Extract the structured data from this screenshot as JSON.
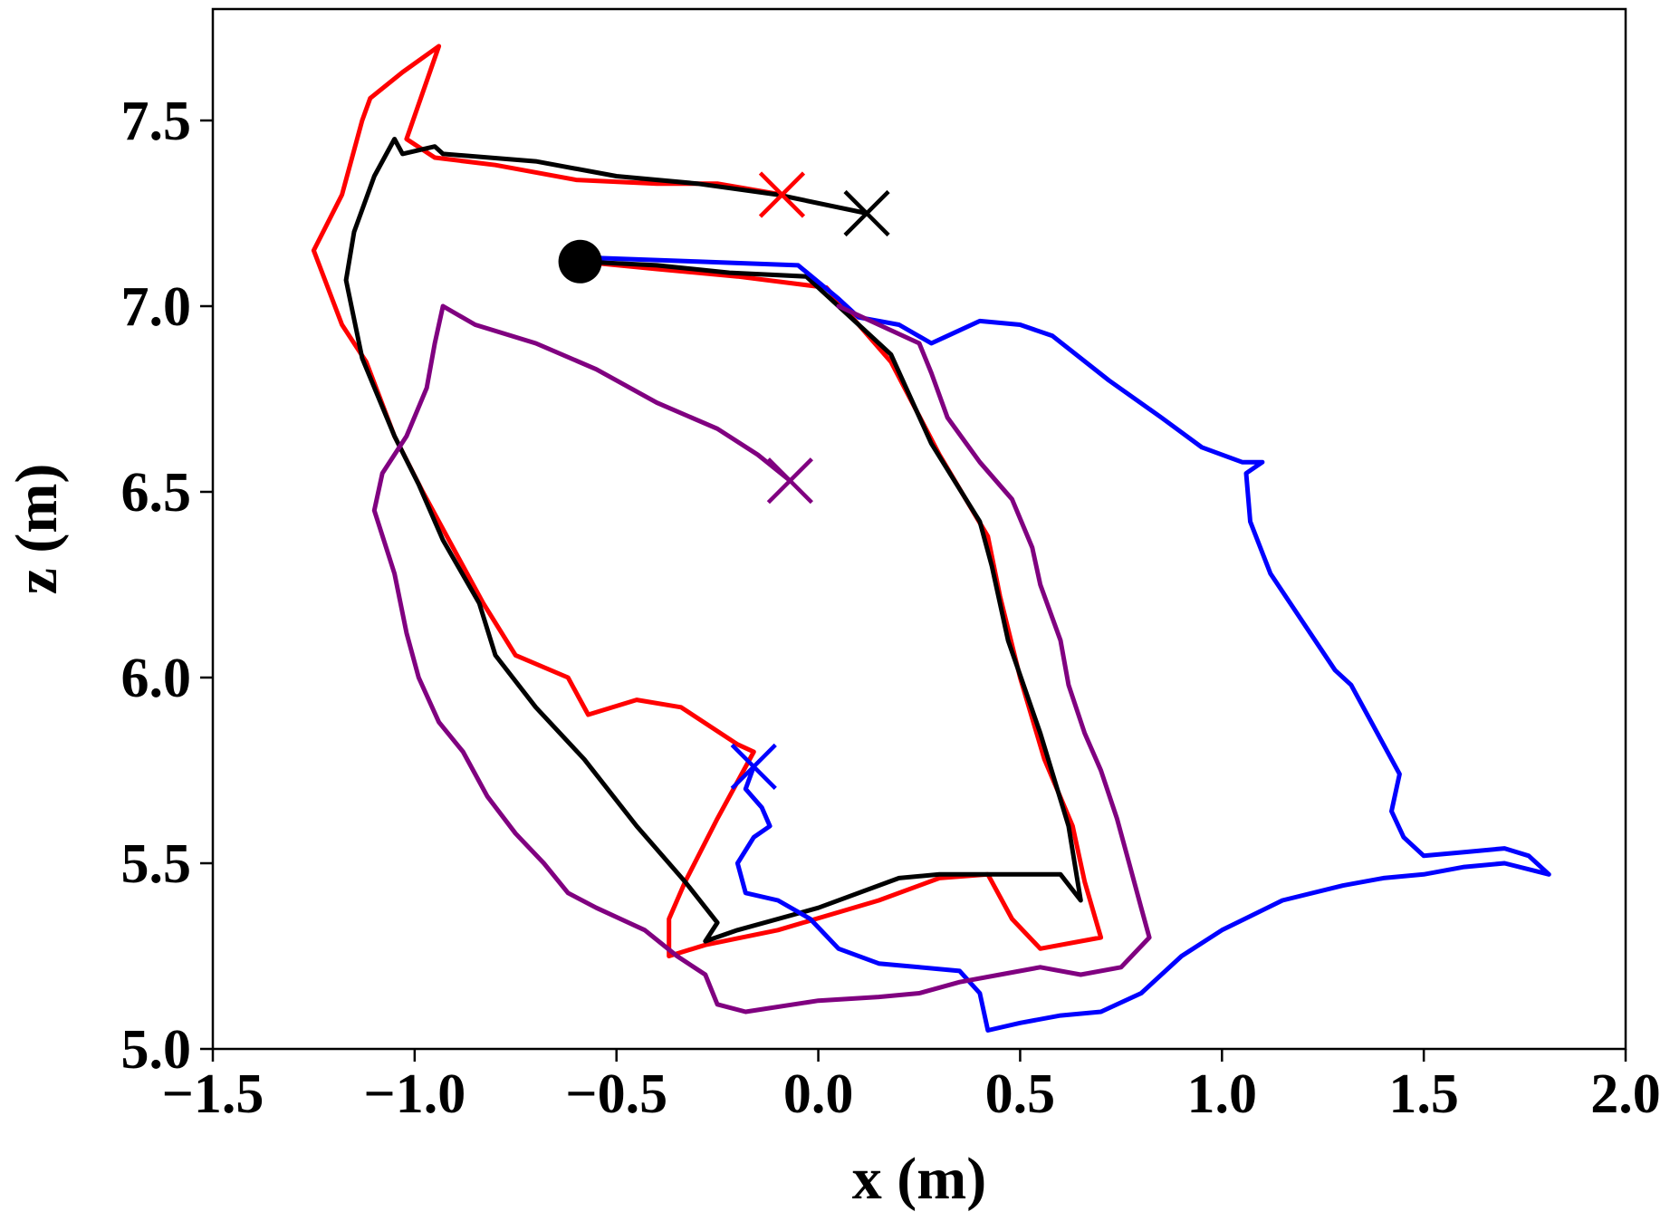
{
  "chart_data": {
    "type": "line",
    "title": "",
    "xlabel": "x (m)",
    "ylabel": "z (m)",
    "xlim": [
      -1.5,
      2.0
    ],
    "ylim": [
      5.0,
      7.8
    ],
    "x_ticks": [
      -1.5,
      -1.0,
      -0.5,
      0.0,
      0.5,
      1.0,
      1.5,
      2.0
    ],
    "x_tick_labels": [
      "−1.5",
      "−1.0",
      "−0.5",
      "0.0",
      "0.5",
      "1.0",
      "1.5",
      "2.0"
    ],
    "y_ticks": [
      5.0,
      5.5,
      6.0,
      6.5,
      7.0,
      7.5
    ],
    "y_tick_labels": [
      "5.0",
      "5.5",
      "6.0",
      "6.5",
      "7.0",
      "7.5"
    ],
    "grid": false,
    "legend": "none",
    "start_point": {
      "x": -0.59,
      "y": 7.12,
      "color": "#000000"
    },
    "series": [
      {
        "color": "#ff0000",
        "end": {
          "x": -0.09,
          "y": 7.3
        },
        "points": [
          [
            -0.59,
            7.12
          ],
          [
            -0.4,
            7.1
          ],
          [
            -0.2,
            7.08
          ],
          [
            0.02,
            7.05
          ],
          [
            0.18,
            6.85
          ],
          [
            0.3,
            6.6
          ],
          [
            0.42,
            6.38
          ],
          [
            0.45,
            6.22
          ],
          [
            0.5,
            6.0
          ],
          [
            0.56,
            5.78
          ],
          [
            0.63,
            5.6
          ],
          [
            0.66,
            5.45
          ],
          [
            0.7,
            5.3
          ],
          [
            0.55,
            5.27
          ],
          [
            0.48,
            5.35
          ],
          [
            0.42,
            5.47
          ],
          [
            0.3,
            5.46
          ],
          [
            0.15,
            5.4
          ],
          [
            -0.1,
            5.32
          ],
          [
            -0.28,
            5.28
          ],
          [
            -0.37,
            5.25
          ],
          [
            -0.37,
            5.35
          ],
          [
            -0.33,
            5.45
          ],
          [
            -0.25,
            5.62
          ],
          [
            -0.16,
            5.8
          ],
          [
            -0.2,
            5.82
          ],
          [
            -0.34,
            5.92
          ],
          [
            -0.45,
            5.94
          ],
          [
            -0.57,
            5.9
          ],
          [
            -0.62,
            6.0
          ],
          [
            -0.75,
            6.06
          ],
          [
            -0.83,
            6.2
          ],
          [
            -0.9,
            6.34
          ],
          [
            -0.98,
            6.5
          ],
          [
            -1.05,
            6.65
          ],
          [
            -1.12,
            6.85
          ],
          [
            -1.18,
            6.95
          ],
          [
            -1.25,
            7.15
          ],
          [
            -1.18,
            7.3
          ],
          [
            -1.13,
            7.5
          ],
          [
            -1.11,
            7.56
          ],
          [
            -1.03,
            7.63
          ],
          [
            -0.94,
            7.7
          ],
          [
            -1.02,
            7.45
          ],
          [
            -0.95,
            7.4
          ],
          [
            -0.8,
            7.38
          ],
          [
            -0.6,
            7.34
          ],
          [
            -0.4,
            7.33
          ],
          [
            -0.25,
            7.33
          ],
          [
            -0.09,
            7.3
          ]
        ]
      },
      {
        "color": "#000000",
        "end": {
          "x": 0.12,
          "y": 7.25
        },
        "points": [
          [
            -0.59,
            7.12
          ],
          [
            -0.4,
            7.11
          ],
          [
            -0.22,
            7.09
          ],
          [
            -0.03,
            7.08
          ],
          [
            0.05,
            7.0
          ],
          [
            0.18,
            6.87
          ],
          [
            0.28,
            6.63
          ],
          [
            0.4,
            6.42
          ],
          [
            0.43,
            6.3
          ],
          [
            0.47,
            6.1
          ],
          [
            0.55,
            5.85
          ],
          [
            0.62,
            5.6
          ],
          [
            0.65,
            5.4
          ],
          [
            0.6,
            5.47
          ],
          [
            0.3,
            5.47
          ],
          [
            0.2,
            5.46
          ],
          [
            0.0,
            5.38
          ],
          [
            -0.2,
            5.32
          ],
          [
            -0.28,
            5.29
          ],
          [
            -0.25,
            5.34
          ],
          [
            -0.33,
            5.45
          ],
          [
            -0.45,
            5.6
          ],
          [
            -0.58,
            5.78
          ],
          [
            -0.7,
            5.92
          ],
          [
            -0.8,
            6.06
          ],
          [
            -0.84,
            6.2
          ],
          [
            -0.93,
            6.37
          ],
          [
            -0.99,
            6.52
          ],
          [
            -1.05,
            6.65
          ],
          [
            -1.13,
            6.86
          ],
          [
            -1.17,
            7.07
          ],
          [
            -1.15,
            7.2
          ],
          [
            -1.1,
            7.35
          ],
          [
            -1.05,
            7.45
          ],
          [
            -1.03,
            7.41
          ],
          [
            -0.95,
            7.43
          ],
          [
            -0.93,
            7.41
          ],
          [
            -0.7,
            7.39
          ],
          [
            -0.5,
            7.35
          ],
          [
            -0.3,
            7.33
          ],
          [
            -0.1,
            7.3
          ],
          [
            0.12,
            7.25
          ]
        ]
      },
      {
        "color": "#0000ff",
        "end": {
          "x": -0.16,
          "y": 5.76
        },
        "points": [
          [
            -0.55,
            7.13
          ],
          [
            -0.3,
            7.12
          ],
          [
            -0.05,
            7.11
          ],
          [
            0.05,
            7.02
          ],
          [
            0.1,
            6.97
          ],
          [
            0.2,
            6.95
          ],
          [
            0.28,
            6.9
          ],
          [
            0.32,
            6.92
          ],
          [
            0.4,
            6.96
          ],
          [
            0.5,
            6.95
          ],
          [
            0.58,
            6.92
          ],
          [
            0.72,
            6.8
          ],
          [
            0.85,
            6.7
          ],
          [
            0.95,
            6.62
          ],
          [
            1.05,
            6.58
          ],
          [
            1.1,
            6.58
          ],
          [
            1.06,
            6.55
          ],
          [
            1.07,
            6.42
          ],
          [
            1.12,
            6.28
          ],
          [
            1.2,
            6.15
          ],
          [
            1.28,
            6.02
          ],
          [
            1.32,
            5.98
          ],
          [
            1.35,
            5.92
          ],
          [
            1.4,
            5.82
          ],
          [
            1.44,
            5.74
          ],
          [
            1.42,
            5.64
          ],
          [
            1.45,
            5.57
          ],
          [
            1.5,
            5.52
          ],
          [
            1.6,
            5.53
          ],
          [
            1.7,
            5.54
          ],
          [
            1.76,
            5.52
          ],
          [
            1.81,
            5.47
          ],
          [
            1.7,
            5.5
          ],
          [
            1.6,
            5.49
          ],
          [
            1.5,
            5.47
          ],
          [
            1.4,
            5.46
          ],
          [
            1.3,
            5.44
          ],
          [
            1.15,
            5.4
          ],
          [
            1.0,
            5.32
          ],
          [
            0.9,
            5.25
          ],
          [
            0.8,
            5.15
          ],
          [
            0.7,
            5.1
          ],
          [
            0.6,
            5.09
          ],
          [
            0.5,
            5.07
          ],
          [
            0.42,
            5.05
          ],
          [
            0.4,
            5.15
          ],
          [
            0.35,
            5.21
          ],
          [
            0.25,
            5.22
          ],
          [
            0.15,
            5.23
          ],
          [
            0.05,
            5.27
          ],
          [
            -0.02,
            5.35
          ],
          [
            -0.1,
            5.4
          ],
          [
            -0.18,
            5.42
          ],
          [
            -0.2,
            5.5
          ],
          [
            -0.16,
            5.57
          ],
          [
            -0.12,
            5.6
          ],
          [
            -0.14,
            5.65
          ],
          [
            -0.18,
            5.7
          ],
          [
            -0.16,
            5.76
          ]
        ]
      },
      {
        "color": "#800080",
        "end": {
          "x": -0.07,
          "y": 6.53
        },
        "points": [
          [
            0.05,
            7.0
          ],
          [
            0.15,
            6.95
          ],
          [
            0.25,
            6.9
          ],
          [
            0.28,
            6.82
          ],
          [
            0.32,
            6.7
          ],
          [
            0.4,
            6.58
          ],
          [
            0.48,
            6.48
          ],
          [
            0.53,
            6.35
          ],
          [
            0.55,
            6.25
          ],
          [
            0.6,
            6.1
          ],
          [
            0.62,
            5.98
          ],
          [
            0.66,
            5.85
          ],
          [
            0.7,
            5.75
          ],
          [
            0.74,
            5.62
          ],
          [
            0.77,
            5.5
          ],
          [
            0.8,
            5.38
          ],
          [
            0.82,
            5.3
          ],
          [
            0.75,
            5.22
          ],
          [
            0.65,
            5.2
          ],
          [
            0.55,
            5.22
          ],
          [
            0.45,
            5.2
          ],
          [
            0.35,
            5.18
          ],
          [
            0.25,
            5.15
          ],
          [
            0.15,
            5.14
          ],
          [
            0.0,
            5.13
          ],
          [
            -0.18,
            5.1
          ],
          [
            -0.25,
            5.12
          ],
          [
            -0.28,
            5.2
          ],
          [
            -0.35,
            5.25
          ],
          [
            -0.43,
            5.32
          ],
          [
            -0.55,
            5.38
          ],
          [
            -0.62,
            5.42
          ],
          [
            -0.68,
            5.5
          ],
          [
            -0.75,
            5.58
          ],
          [
            -0.82,
            5.68
          ],
          [
            -0.88,
            5.8
          ],
          [
            -0.94,
            5.88
          ],
          [
            -0.99,
            6.0
          ],
          [
            -1.02,
            6.12
          ],
          [
            -1.05,
            6.28
          ],
          [
            -1.1,
            6.45
          ],
          [
            -1.08,
            6.55
          ],
          [
            -1.02,
            6.65
          ],
          [
            -0.97,
            6.78
          ],
          [
            -0.95,
            6.9
          ],
          [
            -0.93,
            7.0
          ],
          [
            -0.85,
            6.95
          ],
          [
            -0.7,
            6.9
          ],
          [
            -0.55,
            6.83
          ],
          [
            -0.4,
            6.74
          ],
          [
            -0.25,
            6.67
          ],
          [
            -0.15,
            6.6
          ],
          [
            -0.07,
            6.53
          ]
        ]
      }
    ]
  }
}
